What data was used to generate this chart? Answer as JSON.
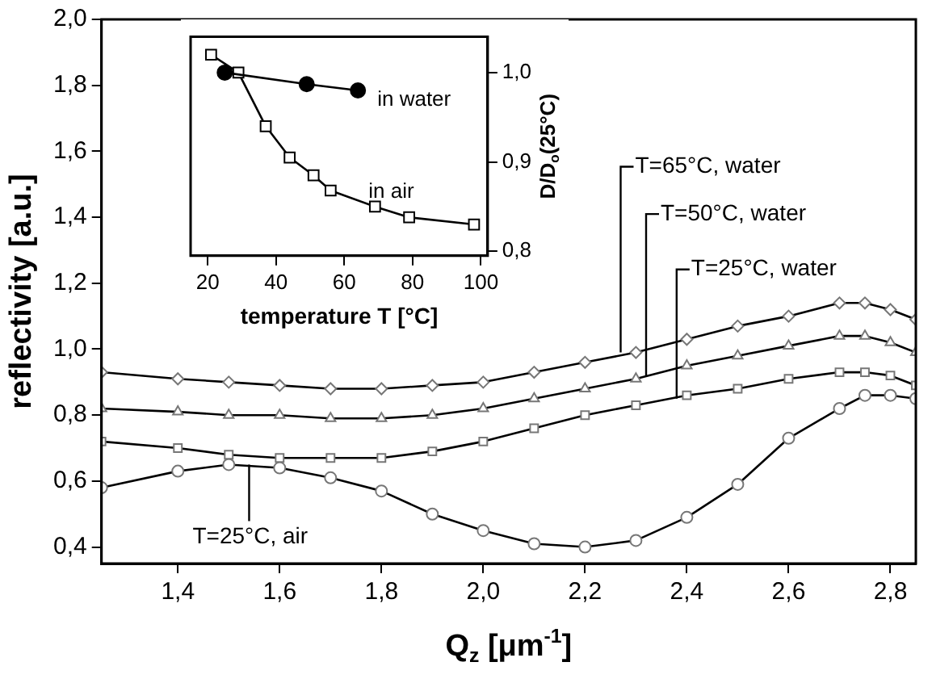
{
  "chart_data": [
    {
      "type": "line",
      "xlabel": "Q$_{z}$ [μm$^{-1}$]",
      "ylabel": "reflectivity [a.u.]",
      "xlim": [
        1.25,
        2.85
      ],
      "ylim": [
        0.35,
        2.0
      ],
      "xticks": [
        {
          "value": 1.4,
          "label": "1,4"
        },
        {
          "value": 1.6,
          "label": "1,6"
        },
        {
          "value": 1.8,
          "label": "1,8"
        },
        {
          "value": 2.0,
          "label": "2,0"
        },
        {
          "value": 2.2,
          "label": "2,2"
        },
        {
          "value": 2.4,
          "label": "2,4"
        },
        {
          "value": 2.6,
          "label": "2,6"
        },
        {
          "value": 2.8,
          "label": "2,8"
        }
      ],
      "yticks": [
        {
          "value": 0.4,
          "label": "0,4"
        },
        {
          "value": 0.6,
          "label": "0,6"
        },
        {
          "value": 0.8,
          "label": "0,8"
        },
        {
          "value": 1.0,
          "label": "1,0"
        },
        {
          "value": 1.2,
          "label": "1,2"
        },
        {
          "value": 1.4,
          "label": "1,4"
        },
        {
          "value": 1.6,
          "label": "1,6"
        },
        {
          "value": 1.8,
          "label": "1,8"
        },
        {
          "value": 2.0,
          "label": "2,0"
        }
      ],
      "grid": false,
      "legend": false,
      "x": [
        1.25,
        1.4,
        1.5,
        1.6,
        1.7,
        1.8,
        1.9,
        2.0,
        2.1,
        2.2,
        2.3,
        2.4,
        2.5,
        2.6,
        2.7,
        2.75,
        2.8,
        2.85
      ],
      "series": [
        {
          "color": "#000000",
          "marker": "diamond",
          "values": [
            0.93,
            0.91,
            0.9,
            0.89,
            0.88,
            0.88,
            0.89,
            0.9,
            0.93,
            0.96,
            0.99,
            1.03,
            1.07,
            1.1,
            1.14,
            1.14,
            1.12,
            1.09
          ]
        },
        {
          "color": "#000000",
          "marker": "triangle",
          "values": [
            0.82,
            0.81,
            0.8,
            0.8,
            0.79,
            0.79,
            0.8,
            0.82,
            0.85,
            0.88,
            0.91,
            0.95,
            0.98,
            1.01,
            1.04,
            1.04,
            1.02,
            0.99
          ]
        },
        {
          "color": "#000000",
          "marker": "square",
          "values": [
            0.72,
            0.7,
            0.68,
            0.67,
            0.67,
            0.67,
            0.69,
            0.72,
            0.76,
            0.8,
            0.83,
            0.86,
            0.88,
            0.91,
            0.93,
            0.93,
            0.92,
            0.89
          ]
        },
        {
          "color": "#000000",
          "marker": "circle",
          "values": [
            0.58,
            0.63,
            0.65,
            0.64,
            0.61,
            0.57,
            0.5,
            0.45,
            0.41,
            0.4,
            0.42,
            0.49,
            0.59,
            0.73,
            0.82,
            0.86,
            0.86,
            0.85
          ]
        }
      ],
      "annotations": [
        {
          "text": "T=65°C, water",
          "x": 2.27,
          "y": 0.99
        },
        {
          "text": "T=50°C, water",
          "x": 2.32,
          "y": 0.92
        },
        {
          "text": "T=25°C, water",
          "x": 2.38,
          "y": 0.85
        },
        {
          "text": "T=25°C, air",
          "x": 1.54,
          "y": 0.65
        }
      ]
    },
    {
      "type": "line",
      "xlabel": "temperature T [°C]",
      "y2label": "D/D$_{o}$(25°C)",
      "xlim": [
        15,
        102
      ],
      "y2lim": [
        0.795,
        1.04
      ],
      "xticks": [
        20,
        40,
        60,
        80,
        100
      ],
      "y2ticks": [
        {
          "value": 0.8,
          "label": "0,8"
        },
        {
          "value": 0.9,
          "label": "0,9"
        },
        {
          "value": 1.0,
          "label": "1,0"
        }
      ],
      "grid": false,
      "legend": false,
      "series": [
        {
          "name": "in water",
          "color": "#000000",
          "marker": "circle",
          "axis": "y2",
          "x": [
            25,
            49,
            64
          ],
          "values": [
            1.0,
            0.987,
            0.98
          ]
        },
        {
          "name": "in air",
          "color": "#000000",
          "marker": "square",
          "axis": "y2",
          "x": [
            21,
            29,
            37,
            44,
            51,
            56,
            69,
            79,
            98
          ],
          "values": [
            1.02,
            1.0,
            0.94,
            0.905,
            0.885,
            0.868,
            0.85,
            0.838,
            0.83
          ]
        }
      ]
    }
  ]
}
